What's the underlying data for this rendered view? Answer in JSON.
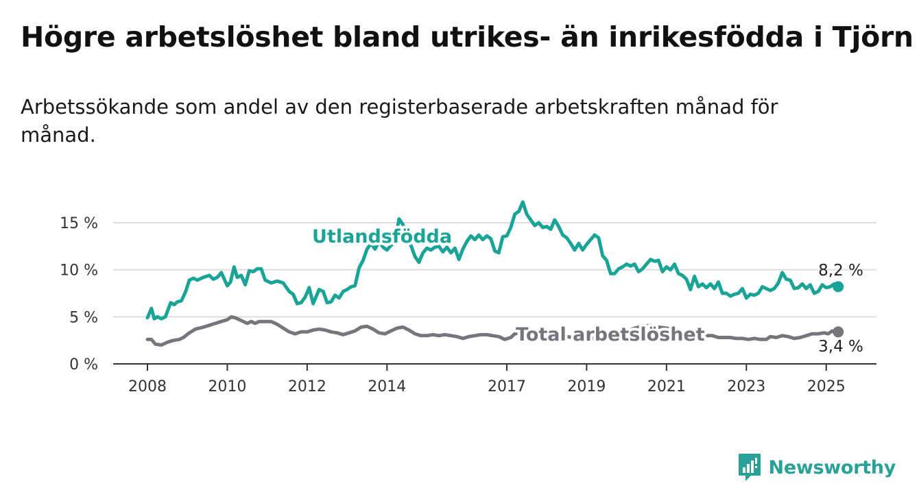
{
  "title": "Högre arbetslöshet bland utrikes- än inrikesfödda i Tjörn",
  "subtitle": "Arbetssökande som andel av den registerbaserade arbetskraften månad för månad.",
  "brand": "Newsworthy",
  "colors": {
    "utlandsfodda": "#1aa497",
    "total": "#75757d",
    "grid": "#dddddd",
    "axis": "#333333",
    "brand": "#2aa198"
  },
  "chart_data": {
    "type": "line",
    "title": "Högre arbetslöshet bland utrikes- än inrikesfödda i Tjörn",
    "xlabel": "",
    "ylabel": "",
    "xlim": [
      2008.0,
      2025.4
    ],
    "ylim": [
      0,
      15
    ],
    "x_ticks": [
      2008,
      2010,
      2012,
      2014,
      2017,
      2019,
      2021,
      2023,
      2025
    ],
    "x_tick_labels": [
      "2008",
      "2010",
      "2012",
      "2014",
      "2017",
      "2019",
      "2021",
      "2023",
      "2025"
    ],
    "y_ticks": [
      0,
      5,
      10,
      15
    ],
    "y_tick_labels": [
      "0 %",
      "5 %",
      "10 %",
      "15 %"
    ],
    "grid": true,
    "series": [
      {
        "name": "Utlandsfödda",
        "color": "#1aa497",
        "end_label": "8,2 %",
        "points": [
          [
            2008.0,
            4.9
          ],
          [
            2008.1,
            5.9
          ],
          [
            2008.17,
            4.8
          ],
          [
            2008.25,
            5.0
          ],
          [
            2008.35,
            4.8
          ],
          [
            2008.45,
            5.0
          ],
          [
            2008.58,
            6.5
          ],
          [
            2008.67,
            6.3
          ],
          [
            2008.75,
            6.6
          ],
          [
            2008.85,
            6.7
          ],
          [
            2008.95,
            7.6
          ],
          [
            2009.05,
            8.9
          ],
          [
            2009.15,
            9.1
          ],
          [
            2009.25,
            8.9
          ],
          [
            2009.4,
            9.2
          ],
          [
            2009.55,
            9.4
          ],
          [
            2009.65,
            9.0
          ],
          [
            2009.75,
            9.2
          ],
          [
            2009.85,
            9.7
          ],
          [
            2010.0,
            8.3
          ],
          [
            2010.08,
            8.7
          ],
          [
            2010.17,
            10.3
          ],
          [
            2010.25,
            9.2
          ],
          [
            2010.35,
            9.4
          ],
          [
            2010.45,
            8.4
          ],
          [
            2010.55,
            9.9
          ],
          [
            2010.65,
            9.8
          ],
          [
            2010.75,
            10.1
          ],
          [
            2010.85,
            10.1
          ],
          [
            2010.95,
            8.9
          ],
          [
            2011.1,
            8.6
          ],
          [
            2011.25,
            8.8
          ],
          [
            2011.4,
            8.6
          ],
          [
            2011.55,
            7.7
          ],
          [
            2011.65,
            7.4
          ],
          [
            2011.75,
            6.4
          ],
          [
            2011.85,
            6.5
          ],
          [
            2011.95,
            7.1
          ],
          [
            2012.05,
            8.1
          ],
          [
            2012.15,
            6.4
          ],
          [
            2012.3,
            7.9
          ],
          [
            2012.4,
            7.7
          ],
          [
            2012.5,
            6.5
          ],
          [
            2012.6,
            6.6
          ],
          [
            2012.7,
            7.3
          ],
          [
            2012.8,
            7.0
          ],
          [
            2012.9,
            7.7
          ],
          [
            2013.0,
            7.9
          ],
          [
            2013.1,
            8.2
          ],
          [
            2013.2,
            8.3
          ],
          [
            2013.3,
            10.2
          ],
          [
            2013.4,
            11.0
          ],
          [
            2013.5,
            12.2
          ],
          [
            2013.6,
            12.8
          ],
          [
            2013.7,
            12.2
          ],
          [
            2013.8,
            13.0
          ],
          [
            2013.9,
            12.4
          ],
          [
            2014.0,
            12.1
          ],
          [
            2014.1,
            12.6
          ],
          [
            2014.2,
            12.9
          ],
          [
            2014.3,
            15.4
          ],
          [
            2014.4,
            14.8
          ],
          [
            2014.5,
            13.0
          ],
          [
            2014.6,
            12.6
          ],
          [
            2014.7,
            11.4
          ],
          [
            2014.8,
            10.8
          ],
          [
            2014.9,
            11.8
          ],
          [
            2015.0,
            12.3
          ],
          [
            2015.1,
            12.1
          ],
          [
            2015.2,
            12.4
          ],
          [
            2015.3,
            12.5
          ],
          [
            2015.4,
            11.9
          ],
          [
            2015.5,
            12.4
          ],
          [
            2015.6,
            11.8
          ],
          [
            2015.7,
            12.3
          ],
          [
            2015.8,
            11.1
          ],
          [
            2015.9,
            12.2
          ],
          [
            2016.0,
            13.0
          ],
          [
            2016.1,
            13.6
          ],
          [
            2016.2,
            13.2
          ],
          [
            2016.3,
            13.7
          ],
          [
            2016.4,
            13.2
          ],
          [
            2016.5,
            13.6
          ],
          [
            2016.6,
            13.3
          ],
          [
            2016.7,
            12.0
          ],
          [
            2016.8,
            11.8
          ],
          [
            2016.9,
            13.5
          ],
          [
            2017.0,
            13.6
          ],
          [
            2017.1,
            14.5
          ],
          [
            2017.2,
            15.9
          ],
          [
            2017.3,
            16.2
          ],
          [
            2017.4,
            17.2
          ],
          [
            2017.5,
            15.9
          ],
          [
            2017.6,
            15.3
          ],
          [
            2017.7,
            14.7
          ],
          [
            2017.8,
            15.0
          ],
          [
            2017.9,
            14.5
          ],
          [
            2018.0,
            14.6
          ],
          [
            2018.1,
            14.3
          ],
          [
            2018.2,
            15.3
          ],
          [
            2018.3,
            14.6
          ],
          [
            2018.4,
            13.7
          ],
          [
            2018.5,
            13.4
          ],
          [
            2018.6,
            12.8
          ],
          [
            2018.7,
            12.1
          ],
          [
            2018.8,
            12.8
          ],
          [
            2018.9,
            12.1
          ],
          [
            2019.0,
            12.7
          ],
          [
            2019.1,
            13.2
          ],
          [
            2019.2,
            13.7
          ],
          [
            2019.3,
            13.4
          ],
          [
            2019.4,
            11.5
          ],
          [
            2019.5,
            11.0
          ],
          [
            2019.6,
            9.6
          ],
          [
            2019.7,
            9.6
          ],
          [
            2019.8,
            10.1
          ],
          [
            2019.9,
            10.3
          ],
          [
            2020.0,
            10.6
          ],
          [
            2020.1,
            10.4
          ],
          [
            2020.2,
            10.6
          ],
          [
            2020.3,
            9.8
          ],
          [
            2020.4,
            10.1
          ],
          [
            2020.5,
            10.6
          ],
          [
            2020.6,
            11.1
          ],
          [
            2020.7,
            10.9
          ],
          [
            2020.8,
            11.0
          ],
          [
            2020.9,
            9.8
          ],
          [
            2021.0,
            10.3
          ],
          [
            2021.1,
            10.0
          ],
          [
            2021.2,
            10.6
          ],
          [
            2021.3,
            9.6
          ],
          [
            2021.4,
            9.4
          ],
          [
            2021.5,
            9.0
          ],
          [
            2021.6,
            7.9
          ],
          [
            2021.7,
            9.3
          ],
          [
            2021.8,
            8.2
          ],
          [
            2021.9,
            8.5
          ],
          [
            2022.0,
            8.1
          ],
          [
            2022.1,
            8.5
          ],
          [
            2022.2,
            8.0
          ],
          [
            2022.3,
            8.7
          ],
          [
            2022.4,
            7.5
          ],
          [
            2022.5,
            7.5
          ],
          [
            2022.6,
            7.2
          ],
          [
            2022.7,
            7.4
          ],
          [
            2022.8,
            7.5
          ],
          [
            2022.9,
            8.0
          ],
          [
            2023.0,
            7.0
          ],
          [
            2023.1,
            7.4
          ],
          [
            2023.2,
            7.3
          ],
          [
            2023.3,
            7.5
          ],
          [
            2023.4,
            8.2
          ],
          [
            2023.5,
            8.0
          ],
          [
            2023.6,
            7.8
          ],
          [
            2023.7,
            8.0
          ],
          [
            2023.8,
            8.6
          ],
          [
            2023.9,
            9.7
          ],
          [
            2024.0,
            9.0
          ],
          [
            2024.1,
            8.9
          ],
          [
            2024.2,
            8.0
          ],
          [
            2024.3,
            8.1
          ],
          [
            2024.4,
            8.5
          ],
          [
            2024.5,
            8.0
          ],
          [
            2024.6,
            8.4
          ],
          [
            2024.7,
            7.5
          ],
          [
            2024.8,
            7.7
          ],
          [
            2024.9,
            8.4
          ],
          [
            2025.0,
            8.1
          ],
          [
            2025.1,
            8.2
          ],
          [
            2025.2,
            8.5
          ],
          [
            2025.3,
            8.2
          ]
        ]
      },
      {
        "name": "Total arbetslöshet",
        "color": "#75757d",
        "end_label": "3,4 %",
        "points": [
          [
            2008.0,
            2.6
          ],
          [
            2008.1,
            2.6
          ],
          [
            2008.2,
            2.1
          ],
          [
            2008.35,
            2.0
          ],
          [
            2008.5,
            2.3
          ],
          [
            2008.65,
            2.5
          ],
          [
            2008.8,
            2.6
          ],
          [
            2008.9,
            2.8
          ],
          [
            2009.05,
            3.3
          ],
          [
            2009.2,
            3.7
          ],
          [
            2009.4,
            3.9
          ],
          [
            2009.55,
            4.1
          ],
          [
            2009.7,
            4.3
          ],
          [
            2009.85,
            4.5
          ],
          [
            2010.0,
            4.7
          ],
          [
            2010.1,
            5.0
          ],
          [
            2010.2,
            4.9
          ],
          [
            2010.35,
            4.6
          ],
          [
            2010.5,
            4.3
          ],
          [
            2010.6,
            4.5
          ],
          [
            2010.7,
            4.3
          ],
          [
            2010.8,
            4.5
          ],
          [
            2010.95,
            4.5
          ],
          [
            2011.1,
            4.5
          ],
          [
            2011.25,
            4.2
          ],
          [
            2011.4,
            3.8
          ],
          [
            2011.55,
            3.4
          ],
          [
            2011.7,
            3.2
          ],
          [
            2011.85,
            3.4
          ],
          [
            2012.0,
            3.4
          ],
          [
            2012.15,
            3.6
          ],
          [
            2012.3,
            3.7
          ],
          [
            2012.45,
            3.6
          ],
          [
            2012.6,
            3.4
          ],
          [
            2012.75,
            3.3
          ],
          [
            2012.9,
            3.1
          ],
          [
            2013.05,
            3.3
          ],
          [
            2013.2,
            3.5
          ],
          [
            2013.35,
            3.9
          ],
          [
            2013.5,
            4.0
          ],
          [
            2013.65,
            3.7
          ],
          [
            2013.8,
            3.3
          ],
          [
            2013.95,
            3.2
          ],
          [
            2014.1,
            3.5
          ],
          [
            2014.25,
            3.8
          ],
          [
            2014.4,
            3.9
          ],
          [
            2014.55,
            3.6
          ],
          [
            2014.7,
            3.2
          ],
          [
            2014.85,
            3.0
          ],
          [
            2015.0,
            3.0
          ],
          [
            2015.15,
            3.1
          ],
          [
            2015.3,
            3.0
          ],
          [
            2015.45,
            3.1
          ],
          [
            2015.6,
            3.0
          ],
          [
            2015.75,
            2.9
          ],
          [
            2015.9,
            2.7
          ],
          [
            2016.05,
            2.9
          ],
          [
            2016.2,
            3.0
          ],
          [
            2016.35,
            3.1
          ],
          [
            2016.5,
            3.1
          ],
          [
            2016.65,
            3.0
          ],
          [
            2016.8,
            2.9
          ],
          [
            2016.95,
            2.6
          ],
          [
            2017.1,
            2.8
          ],
          [
            2017.2,
            3.2
          ],
          [
            2017.3,
            3.3
          ],
          [
            2017.4,
            3.5
          ],
          [
            2017.5,
            3.4
          ],
          [
            2017.6,
            3.2
          ],
          [
            2017.75,
            3.0
          ],
          [
            2017.9,
            3.1
          ],
          [
            2018.05,
            3.0
          ],
          [
            2018.2,
            3.1
          ],
          [
            2018.35,
            3.0
          ],
          [
            2018.5,
            2.9
          ],
          [
            2018.65,
            2.8
          ],
          [
            2018.8,
            2.9
          ],
          [
            2019.0,
            2.8
          ],
          [
            2019.15,
            2.7
          ],
          [
            2019.3,
            2.8
          ],
          [
            2019.45,
            2.9
          ],
          [
            2019.6,
            3.0
          ],
          [
            2019.8,
            3.2
          ],
          [
            2020.0,
            3.4
          ],
          [
            2020.2,
            3.8
          ],
          [
            2020.4,
            4.0
          ],
          [
            2020.6,
            4.1
          ],
          [
            2020.8,
            3.9
          ],
          [
            2021.0,
            3.8
          ],
          [
            2021.2,
            3.6
          ],
          [
            2021.4,
            3.4
          ],
          [
            2021.6,
            3.1
          ],
          [
            2021.8,
            3.0
          ],
          [
            2022.0,
            3.0
          ],
          [
            2022.15,
            3.0
          ],
          [
            2022.3,
            2.8
          ],
          [
            2022.45,
            2.8
          ],
          [
            2022.6,
            2.8
          ],
          [
            2022.75,
            2.7
          ],
          [
            2022.9,
            2.7
          ],
          [
            2023.05,
            2.6
          ],
          [
            2023.2,
            2.7
          ],
          [
            2023.35,
            2.6
          ],
          [
            2023.5,
            2.6
          ],
          [
            2023.6,
            2.9
          ],
          [
            2023.75,
            2.8
          ],
          [
            2023.9,
            3.0
          ],
          [
            2024.05,
            2.9
          ],
          [
            2024.2,
            2.7
          ],
          [
            2024.35,
            2.8
          ],
          [
            2024.5,
            3.0
          ],
          [
            2024.65,
            3.2
          ],
          [
            2024.8,
            3.2
          ],
          [
            2024.95,
            3.3
          ],
          [
            2025.05,
            3.2
          ],
          [
            2025.15,
            3.5
          ],
          [
            2025.25,
            3.3
          ],
          [
            2025.3,
            3.4
          ]
        ]
      }
    ]
  }
}
